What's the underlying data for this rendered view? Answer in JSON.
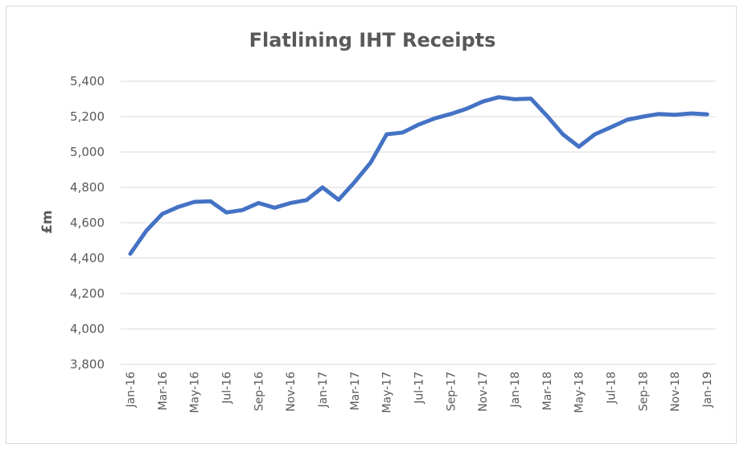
{
  "chart_data": {
    "type": "line",
    "title": "Flatlining IHT Receipts",
    "ylabel": "£m",
    "xlabel": "",
    "ylim": [
      3800,
      5400
    ],
    "yticks": [
      "3,800",
      "4,000",
      "4,200",
      "4,400",
      "4,600",
      "4,800",
      "5,000",
      "5,200",
      "5,400"
    ],
    "ytick_values": [
      3800,
      4000,
      4200,
      4400,
      4600,
      4800,
      5000,
      5200,
      5400
    ],
    "grid": true,
    "legend": "none",
    "series_color": "#4472c4",
    "x": [
      "Jan-16",
      "Feb-16",
      "Mar-16",
      "Apr-16",
      "May-16",
      "Jun-16",
      "Jul-16",
      "Aug-16",
      "Sep-16",
      "Oct-16",
      "Nov-16",
      "Dec-16",
      "Jan-17",
      "Feb-17",
      "Mar-17",
      "Apr-17",
      "May-17",
      "Jun-17",
      "Jul-17",
      "Aug-17",
      "Sep-17",
      "Oct-17",
      "Nov-17",
      "Dec-17",
      "Jan-18",
      "Feb-18",
      "Mar-18",
      "Apr-18",
      "May-18",
      "Jun-18",
      "Jul-18",
      "Aug-18",
      "Sep-18",
      "Oct-18",
      "Nov-18",
      "Dec-18",
      "Jan-19"
    ],
    "xtick_labels": [
      "Jan-16",
      "Mar-16",
      "May-16",
      "Jul-16",
      "Sep-16",
      "Nov-16",
      "Jan-17",
      "Mar-17",
      "May-17",
      "Jul-17",
      "Sep-17",
      "Nov-17",
      "Jan-18",
      "Mar-18",
      "May-18",
      "Jul-18",
      "Sep-18",
      "Nov-18",
      "Jan-19"
    ],
    "series": [
      {
        "values": [
          4425,
          4555,
          4650,
          4690,
          4718,
          4722,
          4658,
          4672,
          4712,
          4685,
          4712,
          4728,
          4800,
          4730,
          4830,
          4940,
          5100,
          5110,
          5155,
          5190,
          5215,
          5245,
          5285,
          5310,
          5298,
          5302,
          5205,
          5100,
          5030,
          5100,
          5140,
          5182,
          5200,
          5215,
          5210,
          5218,
          5213
        ]
      }
    ]
  }
}
